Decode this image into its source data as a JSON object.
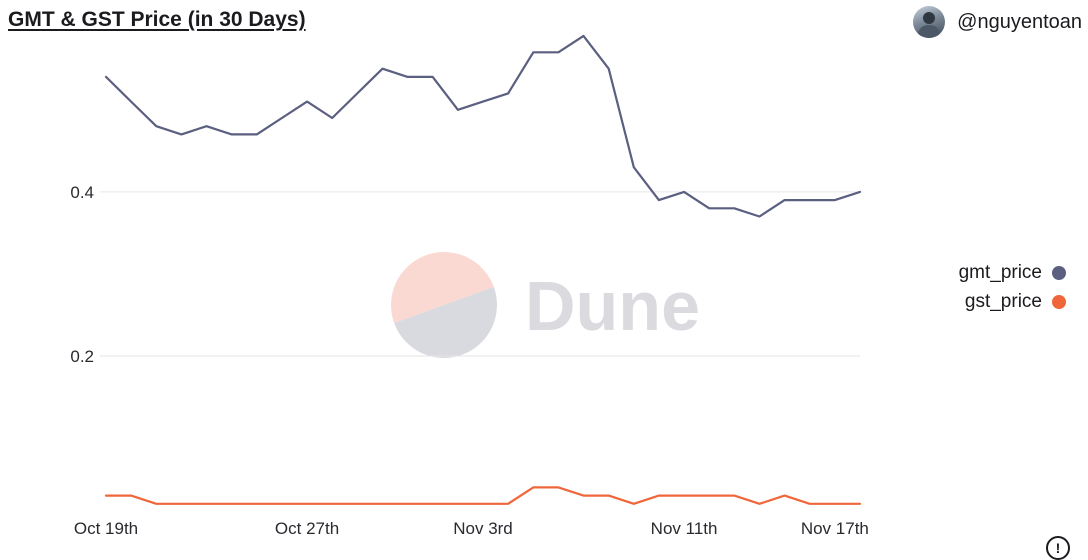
{
  "header": {
    "title": "GMT & GST Price (in 30 Days)",
    "author": "@nguyentoan"
  },
  "watermark": {
    "text": "Dune",
    "colors": {
      "top": "#f9d9d2",
      "bottom": "#d9d9e0",
      "text": "#dadadf"
    }
  },
  "icons": {
    "avatar": "user-avatar",
    "info": "info-icon",
    "info_glyph": "!"
  },
  "colors": {
    "gmt_price": "#5b5f80",
    "gst_price": "#f0663b",
    "grid": "#e6e6e9"
  },
  "chart_data": {
    "type": "line",
    "title": "GMT & GST Price (in 30 Days)",
    "xlabel": "",
    "ylabel": "",
    "x": [
      "2022-10-19",
      "2022-10-20",
      "2022-10-21",
      "2022-10-22",
      "2022-10-23",
      "2022-10-24",
      "2022-10-25",
      "2022-10-26",
      "2022-10-27",
      "2022-10-28",
      "2022-10-29",
      "2022-10-30",
      "2022-10-31",
      "2022-11-01",
      "2022-11-02",
      "2022-11-03",
      "2022-11-04",
      "2022-11-05",
      "2022-11-06",
      "2022-11-07",
      "2022-11-08",
      "2022-11-09",
      "2022-11-10",
      "2022-11-11",
      "2022-11-12",
      "2022-11-13",
      "2022-11-14",
      "2022-11-15",
      "2022-11-16",
      "2022-11-17",
      "2022-11-18"
    ],
    "x_ticks": [
      {
        "index": 0,
        "label": "Oct 19th"
      },
      {
        "index": 8,
        "label": "Oct 27th"
      },
      {
        "index": 15,
        "label": "Nov 3rd"
      },
      {
        "index": 23,
        "label": "Nov 11th"
      },
      {
        "index": 29,
        "label": "Nov 17th"
      }
    ],
    "y_ticks": [
      0.2,
      0.4
    ],
    "y_tick_labels": [
      "0.2",
      "0.4"
    ],
    "ylim": [
      0.01,
      0.585
    ],
    "grid": true,
    "legend_position": "right",
    "series": [
      {
        "name": "gmt_price",
        "values": [
          0.54,
          0.51,
          0.48,
          0.47,
          0.48,
          0.47,
          0.47,
          0.49,
          0.51,
          0.49,
          0.52,
          0.55,
          0.54,
          0.54,
          0.5,
          0.51,
          0.52,
          0.57,
          0.57,
          0.59,
          0.55,
          0.43,
          0.39,
          0.4,
          0.38,
          0.38,
          0.37,
          0.39,
          0.39,
          0.39,
          0.4
        ]
      },
      {
        "name": "gst_price",
        "values": [
          0.03,
          0.03,
          0.02,
          0.02,
          0.02,
          0.02,
          0.02,
          0.02,
          0.02,
          0.02,
          0.02,
          0.02,
          0.02,
          0.02,
          0.02,
          0.02,
          0.02,
          0.04,
          0.04,
          0.03,
          0.03,
          0.02,
          0.03,
          0.03,
          0.03,
          0.03,
          0.02,
          0.03,
          0.02,
          0.02,
          0.02
        ]
      }
    ]
  }
}
